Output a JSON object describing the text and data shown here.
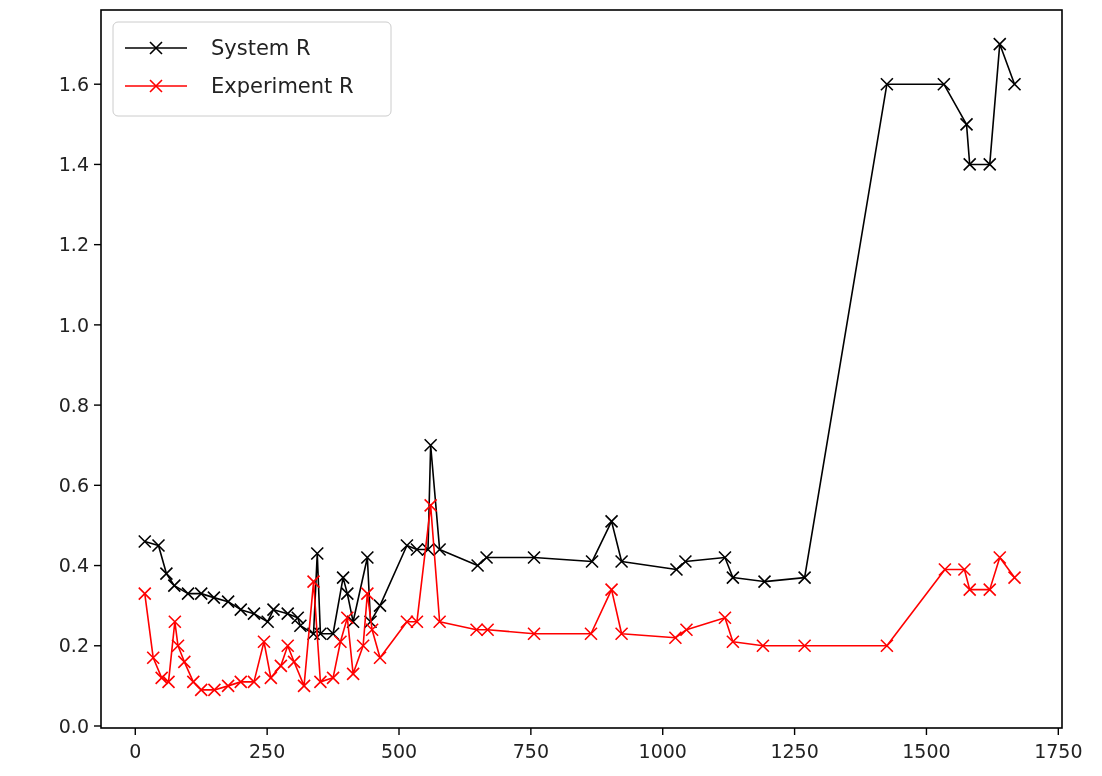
{
  "chart_data": {
    "type": "line",
    "marker": "cross",
    "legend": "top left",
    "grid": false,
    "xlim": [
      -65,
      1757
    ],
    "xticks": [
      0,
      250,
      500,
      750,
      1000,
      1250,
      1500,
      1750
    ],
    "ylim": [
      -0.005,
      1.785
    ],
    "yticks": [
      {
        "value": 0,
        "label": "0.0"
      },
      0.2,
      0.4,
      0.6,
      0.8,
      {
        "value": 1,
        "label": "1.0"
      },
      1.2,
      1.4,
      1.6
    ],
    "series": [
      {
        "name": "System R",
        "color": "#000000",
        "x": [
          18,
          44,
          59,
          74,
          100,
          125,
          149,
          176,
          200,
          225,
          251,
          262,
          289,
          308,
          313,
          338,
          345,
          351,
          375,
          394,
          402,
          413,
          440,
          446,
          464,
          515,
          534,
          555,
          560,
          577,
          649,
          666,
          756,
          866,
          903,
          922,
          1026,
          1043,
          1118,
          1133,
          1193,
          1269,
          1425,
          1533,
          1576,
          1582,
          1620,
          1639,
          1667
        ],
        "values": [
          0.46,
          0.45,
          0.38,
          0.35,
          0.33,
          0.33,
          0.32,
          0.31,
          0.29,
          0.28,
          0.26,
          0.29,
          0.28,
          0.27,
          0.25,
          0.23,
          0.43,
          0.23,
          0.23,
          0.37,
          0.33,
          0.26,
          0.42,
          0.26,
          0.3,
          0.45,
          0.44,
          0.44,
          0.7,
          0.44,
          0.4,
          0.42,
          0.42,
          0.41,
          0.51,
          0.41,
          0.39,
          0.41,
          0.42,
          0.37,
          0.36,
          0.37,
          1.6,
          1.6,
          1.5,
          1.4,
          1.4,
          1.7,
          1.6
        ]
      },
      {
        "name": "Experiment R",
        "color": "#ff0000",
        "x": [
          18,
          34,
          50,
          63,
          75,
          81,
          93,
          110,
          125,
          150,
          176,
          200,
          225,
          244,
          257,
          276,
          289,
          301,
          320,
          338,
          351,
          375,
          389,
          402,
          413,
          432,
          440,
          449,
          464,
          515,
          534,
          560,
          577,
          647,
          668,
          756,
          864,
          903,
          922,
          1024,
          1045,
          1118,
          1133,
          1190,
          1269,
          1425,
          1535,
          1572,
          1582,
          1620,
          1639,
          1667
        ],
        "values": [
          0.33,
          0.17,
          0.12,
          0.11,
          0.26,
          0.2,
          0.16,
          0.11,
          0.09,
          0.09,
          0.1,
          0.11,
          0.11,
          0.21,
          0.12,
          0.15,
          0.2,
          0.16,
          0.1,
          0.36,
          0.11,
          0.12,
          0.21,
          0.27,
          0.13,
          0.2,
          0.33,
          0.24,
          0.17,
          0.26,
          0.26,
          0.55,
          0.26,
          0.24,
          0.24,
          0.23,
          0.23,
          0.34,
          0.23,
          0.22,
          0.24,
          0.27,
          0.21,
          0.2,
          0.2,
          0.2,
          0.39,
          0.39,
          0.34,
          0.34,
          0.42,
          0.37
        ]
      }
    ]
  }
}
